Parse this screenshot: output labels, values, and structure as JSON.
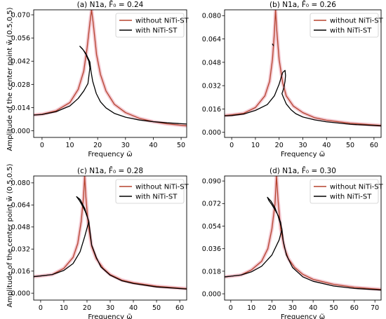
{
  "figure": {
    "ylabel": "Amplitude of the center point w̄ (0.5,0.5)"
  },
  "colors": {
    "without": "#b5432e",
    "with": "#000000",
    "halo": "#f3c9d2"
  },
  "chart_data": [
    {
      "type": "line",
      "title": "(a) N1a, F̄₀ = 0.24",
      "xlabel": "Frequency ω̃",
      "ylabel": "Amplitude of the center point w̄ (0.5,0.5)",
      "xlim": [
        -3,
        52
      ],
      "ylim": [
        -0.004,
        0.073
      ],
      "xticks": [
        0,
        10,
        20,
        30,
        40,
        50
      ],
      "yticks": [
        0.0,
        0.014,
        0.028,
        0.042,
        0.056,
        0.07
      ],
      "ytick_labels": [
        "0.000",
        "0.014",
        "0.028",
        "0.042",
        "0.056",
        "0.070"
      ],
      "legend": "top-right",
      "series": [
        {
          "name": "without NiTi-ST",
          "x": [
            -3,
            0,
            5,
            10,
            13,
            15,
            16.2,
            17.2,
            17.8,
            18.4,
            19.6,
            21,
            23,
            26,
            30,
            35,
            40,
            45,
            52
          ],
          "y": [
            0.0096,
            0.01,
            0.012,
            0.017,
            0.025,
            0.036,
            0.05,
            0.065,
            0.073,
            0.065,
            0.046,
            0.034,
            0.024,
            0.016,
            0.011,
            0.0075,
            0.0055,
            0.0042,
            0.003
          ]
        },
        {
          "name": "with NiTi-ST",
          "x": [
            -3,
            0,
            5,
            10,
            13,
            15,
            16.5,
            17.2,
            16.8,
            15.8,
            14.8,
            13.6,
            14.5,
            15.8,
            17.2,
            17.6,
            18.2,
            19.5,
            21,
            23,
            26,
            30,
            35,
            40,
            45,
            52
          ],
          "y": [
            0.0095,
            0.0098,
            0.0115,
            0.015,
            0.0195,
            0.024,
            0.0285,
            0.038,
            0.042,
            0.046,
            0.0488,
            0.051,
            0.0495,
            0.0465,
            0.0415,
            0.036,
            0.03,
            0.0225,
            0.0175,
            0.0138,
            0.0105,
            0.0082,
            0.0065,
            0.0055,
            0.0048,
            0.0041
          ]
        }
      ]
    },
    {
      "type": "line",
      "title": "(b) N1a, F̄₀ = 0.26",
      "xlabel": "Frequency ω̃",
      "ylabel": "",
      "xlim": [
        -3,
        63
      ],
      "ylim": [
        -0.0035,
        0.084
      ],
      "xticks": [
        0,
        10,
        20,
        30,
        40,
        50,
        60
      ],
      "yticks": [
        0.0,
        0.016,
        0.032,
        0.048,
        0.064,
        0.08
      ],
      "ytick_labels": [
        "0.000",
        "0.016",
        "0.032",
        "0.048",
        "0.064",
        "0.080"
      ],
      "legend": "top-right",
      "series": [
        {
          "name": "without NiTi-ST",
          "x": [
            -3,
            0,
            5,
            10,
            14,
            16,
            17.2,
            18,
            18.5,
            19,
            20,
            21.5,
            23,
            26,
            30,
            35,
            40,
            50,
            63
          ],
          "y": [
            0.0115,
            0.012,
            0.013,
            0.017,
            0.025,
            0.035,
            0.05,
            0.068,
            0.084,
            0.07,
            0.05,
            0.034,
            0.025,
            0.018,
            0.0135,
            0.01,
            0.0083,
            0.0062,
            0.0047
          ]
        },
        {
          "name": "with NiTi-ST",
          "x": [
            -3,
            0,
            5,
            10,
            15,
            18,
            20,
            21.5,
            22.5,
            22.7,
            22.5,
            22,
            21.2,
            21.8,
            23,
            25,
            27,
            30,
            35,
            40,
            50,
            63
          ],
          "y": [
            0.0113,
            0.0115,
            0.0125,
            0.015,
            0.019,
            0.025,
            0.033,
            0.041,
            0.0425,
            0.039,
            0.035,
            0.0305,
            0.0265,
            0.024,
            0.0195,
            0.0155,
            0.0128,
            0.0105,
            0.0085,
            0.0072,
            0.0055,
            0.0044
          ]
        },
        {
          "name": "",
          "x": [
            17.2,
            17.6
          ],
          "y": [
            0.0605,
            0.0595
          ]
        }
      ]
    },
    {
      "type": "line",
      "title": "(c) N1a, F̄₀ = 0.28",
      "xlabel": "Frequency ω̃",
      "ylabel": "Amplitude of the center point w̄ (0.5,0.5)",
      "xlim": [
        -3,
        63
      ],
      "ylim": [
        -0.005,
        0.085
      ],
      "xticks": [
        0,
        10,
        20,
        30,
        40,
        50,
        60
      ],
      "yticks": [
        0.0,
        0.016,
        0.032,
        0.048,
        0.064,
        0.08
      ],
      "ytick_labels": [
        "0.000",
        "0.016",
        "0.032",
        "0.048",
        "0.064",
        "0.080"
      ],
      "legend": "top-right",
      "series": [
        {
          "name": "without NiTi-ST",
          "x": [
            -3,
            0,
            5,
            10,
            14,
            16,
            17.5,
            18.5,
            19,
            19.5,
            20.5,
            22,
            24,
            27,
            30,
            35,
            40,
            50,
            63
          ],
          "y": [
            0.012,
            0.0125,
            0.0135,
            0.018,
            0.026,
            0.036,
            0.052,
            0.07,
            0.085,
            0.07,
            0.05,
            0.034,
            0.025,
            0.018,
            0.0135,
            0.0095,
            0.0075,
            0.005,
            0.0033
          ]
        },
        {
          "name": "with NiTi-ST",
          "x": [
            -3,
            0,
            5,
            10,
            14,
            17,
            19,
            20.3,
            20.8,
            20.2,
            19.2,
            18,
            16.8,
            15.5,
            17,
            19,
            20.8,
            21.5,
            22,
            24,
            26,
            30,
            35,
            40,
            50,
            63
          ],
          "y": [
            0.012,
            0.0125,
            0.0135,
            0.0165,
            0.0215,
            0.03,
            0.041,
            0.049,
            0.052,
            0.055,
            0.0595,
            0.0635,
            0.067,
            0.07,
            0.068,
            0.0615,
            0.052,
            0.042,
            0.035,
            0.026,
            0.019,
            0.013,
            0.009,
            0.007,
            0.0045,
            0.003
          ]
        }
      ]
    },
    {
      "type": "line",
      "title": "(d) N1a, F̄₀ = 0.30",
      "xlabel": "Frequency ω̃",
      "ylabel": "",
      "xlim": [
        -3,
        73
      ],
      "ylim": [
        -0.005,
        0.094
      ],
      "xticks": [
        0,
        10,
        20,
        30,
        40,
        50,
        60,
        70
      ],
      "yticks": [
        0.0,
        0.018,
        0.036,
        0.054,
        0.072,
        0.09
      ],
      "ytick_labels": [
        "0.000",
        "0.018",
        "0.036",
        "0.054",
        "0.072",
        "0.090"
      ],
      "legend": "top-right",
      "series": [
        {
          "name": "without NiTi-ST",
          "x": [
            -3,
            0,
            5,
            10,
            15,
            18,
            20,
            21.5,
            22.2,
            23,
            24.2,
            26,
            28,
            31,
            35,
            40,
            50,
            60,
            73
          ],
          "y": [
            0.0135,
            0.014,
            0.015,
            0.019,
            0.026,
            0.036,
            0.052,
            0.072,
            0.094,
            0.074,
            0.052,
            0.037,
            0.028,
            0.021,
            0.0155,
            0.0115,
            0.0075,
            0.0052,
            0.0035
          ]
        },
        {
          "name": "with NiTi-ST",
          "x": [
            -3,
            0,
            5,
            10,
            15,
            20,
            23.5,
            24.8,
            24.2,
            23,
            21.5,
            20,
            18.5,
            17.8,
            19.5,
            21.5,
            23,
            24.8,
            25.5,
            27,
            30,
            35,
            40,
            50,
            60,
            73
          ],
          "y": [
            0.0135,
            0.014,
            0.015,
            0.0175,
            0.022,
            0.031,
            0.043,
            0.051,
            0.057,
            0.0625,
            0.067,
            0.071,
            0.0745,
            0.077,
            0.074,
            0.0685,
            0.062,
            0.052,
            0.042,
            0.031,
            0.021,
            0.0135,
            0.01,
            0.0062,
            0.0043,
            0.003
          ]
        }
      ]
    }
  ]
}
